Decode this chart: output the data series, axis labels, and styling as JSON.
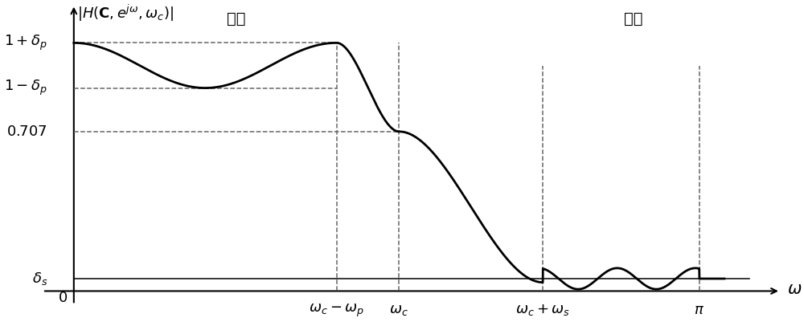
{
  "delta_p": 0.1,
  "delta_s": 0.055,
  "val_707": 0.707,
  "omega_c_minus_p": 0.42,
  "omega_c": 0.52,
  "omega_c_plus_s": 0.75,
  "omega_pi": 1.0,
  "passband_label": "通带",
  "stopband_label": "阻带",
  "bg_color": "#ffffff",
  "curve_color": "#000000",
  "dashed_color": "#666666",
  "line_color": "#000000",
  "fontsize_tick": 13,
  "fontsize_band": 14,
  "fontsize_axis_label": 13
}
